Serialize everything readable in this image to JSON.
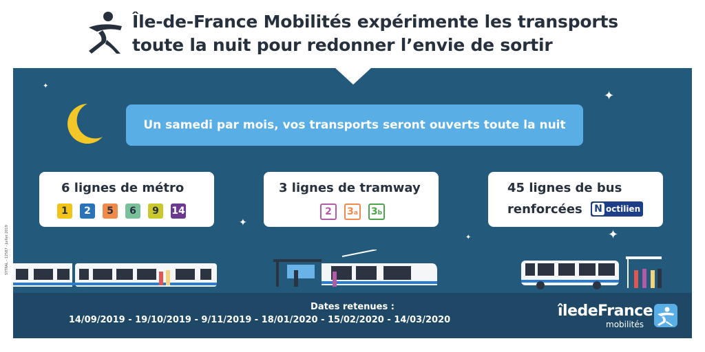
{
  "header": {
    "title_line1": "Île-de-France Mobilités expérimente les transports",
    "title_line2": "toute la nuit pour redonner l’envie de sortir"
  },
  "banner": {
    "text": "Un samedi par mois, vos transports seront ouverts toute la nuit"
  },
  "metro": {
    "title": "6 lignes de métro",
    "lines": [
      {
        "label": "1",
        "color": "#f2c318"
      },
      {
        "label": "2",
        "color": "#2b73b9"
      },
      {
        "label": "5",
        "color": "#f08a4b"
      },
      {
        "label": "6",
        "color": "#7ac09a"
      },
      {
        "label": "9",
        "color": "#c9c92f"
      },
      {
        "label": "14",
        "color": "#6b3a8e"
      }
    ]
  },
  "tram": {
    "title": "3 lignes de tramway",
    "lines": [
      {
        "label": "2",
        "sub": "",
        "color": "#b25ba7"
      },
      {
        "label": "3",
        "sub": "a",
        "color": "#f08a4b"
      },
      {
        "label": "3",
        "sub": "b",
        "color": "#4aa648"
      }
    ]
  },
  "bus": {
    "title_line1": "45 lignes de bus",
    "title_line2": "renforcées",
    "noctilien_label": "octilien",
    "noctilien_letter": "N"
  },
  "footer": {
    "dates_label": "Dates retenues :",
    "dates": "14/09/2019 - 19/10/2019 - 9/11/2019 - 18/01/2020 -  15/02/2020 - 14/03/2020"
  },
  "brand": {
    "name": "îledeFrance",
    "sub": "mobilités"
  },
  "credit": "SYTRAL - 12587 - Juillet 2019",
  "colors": {
    "scene_bg": "#23597a",
    "footer_bg": "#1e4866",
    "banner_bg": "#5aaee6",
    "title_text": "#26313d"
  }
}
